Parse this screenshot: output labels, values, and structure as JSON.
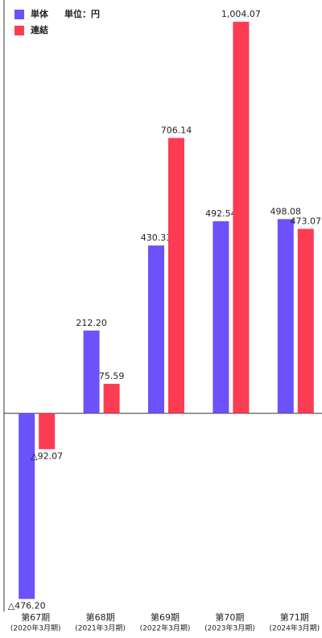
{
  "chart_data": {
    "type": "bar",
    "unit_label": "単位：円",
    "categories": [
      "第67期",
      "第68期",
      "第69期",
      "第70期",
      "第71期"
    ],
    "category_notes": [
      "(2020年3月期)",
      "(2021年3月期)",
      "(2022年3月期)",
      "(2023年3月期)",
      "(2024年3月期)"
    ],
    "series": [
      {
        "name": "単体",
        "color": "#6b52fa",
        "values": [
          -476.2,
          212.2,
          430.33,
          492.54,
          498.08
        ],
        "value_labels": [
          "△476.20",
          "212.20",
          "430.33",
          "492.54",
          "498.08"
        ]
      },
      {
        "name": "連結",
        "color": "#fc3c52",
        "values": [
          -92.07,
          75.59,
          706.14,
          1004.07,
          473.07
        ],
        "value_labels": [
          "△92.07",
          "75.59",
          "706.14",
          "1,004.07",
          "473.07"
        ]
      }
    ],
    "ylim": [
      -500,
      1060
    ]
  }
}
